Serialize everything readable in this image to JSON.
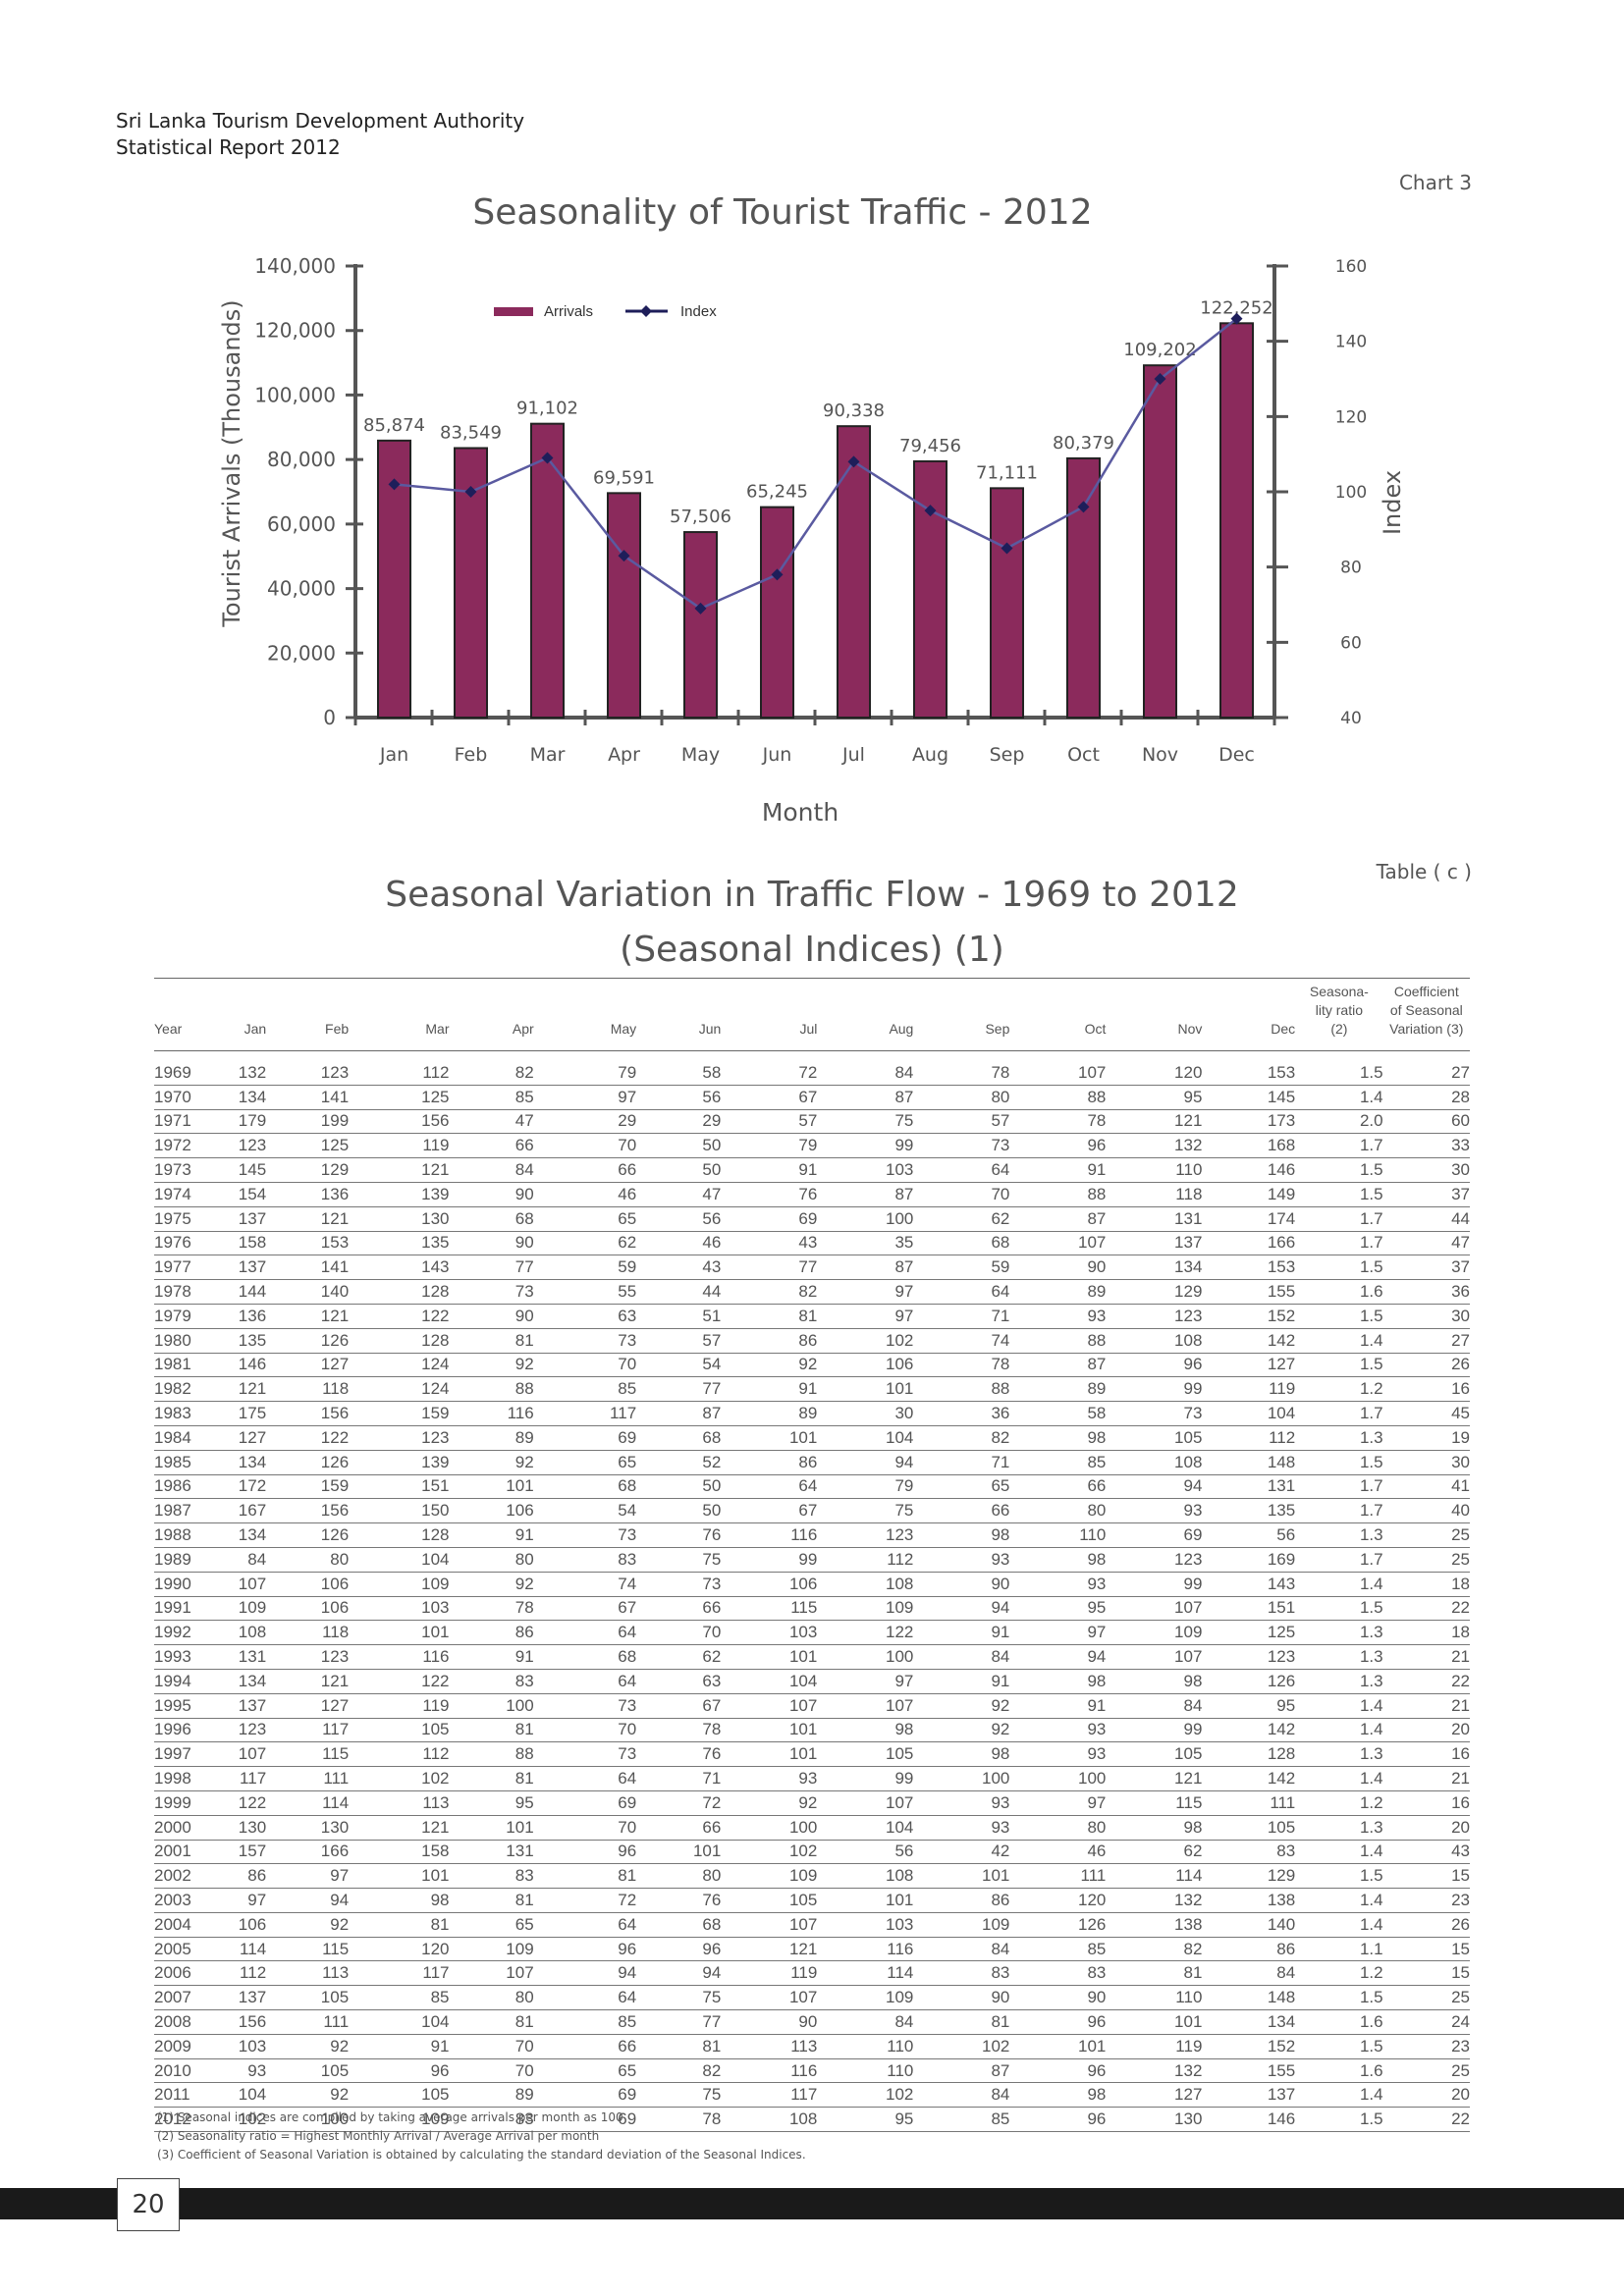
{
  "header": {
    "org_line1": "Sri Lanka Tourism Development Authority",
    "org_line2": "Statistical Report 2012"
  },
  "chart_label": "Chart 3",
  "table_label": "Table ( c )",
  "table_title_line1": "Seasonal Variation in Traffic Flow - 1969 to 2012",
  "table_title_line2": "(Seasonal Indices) (1)",
  "page_number": "20",
  "colors": {
    "bar": "#8b2a5c",
    "line": "#5a5aa0",
    "marker": "#1e1e5a",
    "axis": "#555555"
  },
  "chart_data": {
    "type": "bar",
    "title": "Seasonality of Tourist Traffic - 2012",
    "xlabel": "Month",
    "ylabel": "Tourist Arrivals (Thousands)",
    "y2label": "Index",
    "categories": [
      "Jan",
      "Feb",
      "Mar",
      "Apr",
      "May",
      "Jun",
      "Jul",
      "Aug",
      "Sep",
      "Oct",
      "Nov",
      "Dec"
    ],
    "ylim": [
      0,
      140000
    ],
    "yticks": [
      0,
      20000,
      40000,
      60000,
      80000,
      100000,
      120000,
      140000
    ],
    "ytick_labels": [
      "0",
      "20,000",
      "40,000",
      "60,000",
      "80,000",
      "100,000",
      "120,000",
      "140,000"
    ],
    "y2lim": [
      40,
      160
    ],
    "y2ticks": [
      40,
      60,
      80,
      100,
      120,
      140,
      160
    ],
    "legend_position": "top-left",
    "series": [
      {
        "name": "Arrivals",
        "type": "bar",
        "axis": "left",
        "values": [
          85874,
          83549,
          91102,
          69591,
          57506,
          65245,
          90338,
          79456,
          71111,
          80379,
          109202,
          122252
        ],
        "labels": [
          "85,874",
          "83,549",
          "91,102",
          "69,591",
          "57,506",
          "65,245",
          "90,338",
          "79,456",
          "71,111",
          "80,379",
          "109,202",
          "122,252"
        ]
      },
      {
        "name": "Index",
        "type": "line",
        "axis": "right",
        "values": [
          102,
          100,
          109,
          83,
          69,
          78,
          108,
          95,
          85,
          96,
          130,
          146
        ]
      }
    ]
  },
  "table": {
    "headers": [
      "Year",
      "Jan",
      "Feb",
      "Mar",
      "Apr",
      "May",
      "Jun",
      "Jul",
      "Aug",
      "Sep",
      "Oct",
      "Nov",
      "Dec",
      "Seasona-\nlity ratio\n(2)",
      "Coefficient\nof Seasonal\nVariation (3)"
    ],
    "rows": [
      [
        "1969",
        "132",
        "123",
        "112",
        "82",
        "79",
        "58",
        "72",
        "84",
        "78",
        "107",
        "120",
        "153",
        "1.5",
        "27"
      ],
      [
        "1970",
        "134",
        "141",
        "125",
        "85",
        "97",
        "56",
        "67",
        "87",
        "80",
        "88",
        "95",
        "145",
        "1.4",
        "28"
      ],
      [
        "1971",
        "179",
        "199",
        "156",
        "47",
        "29",
        "29",
        "57",
        "75",
        "57",
        "78",
        "121",
        "173",
        "2.0",
        "60"
      ],
      [
        "1972",
        "123",
        "125",
        "119",
        "66",
        "70",
        "50",
        "79",
        "99",
        "73",
        "96",
        "132",
        "168",
        "1.7",
        "33"
      ],
      [
        "1973",
        "145",
        "129",
        "121",
        "84",
        "66",
        "50",
        "91",
        "103",
        "64",
        "91",
        "110",
        "146",
        "1.5",
        "30"
      ],
      [
        "1974",
        "154",
        "136",
        "139",
        "90",
        "46",
        "47",
        "76",
        "87",
        "70",
        "88",
        "118",
        "149",
        "1.5",
        "37"
      ],
      [
        "1975",
        "137",
        "121",
        "130",
        "68",
        "65",
        "56",
        "69",
        "100",
        "62",
        "87",
        "131",
        "174",
        "1.7",
        "44"
      ],
      [
        "1976",
        "158",
        "153",
        "135",
        "90",
        "62",
        "46",
        "43",
        "35",
        "68",
        "107",
        "137",
        "166",
        "1.7",
        "47"
      ],
      [
        "1977",
        "137",
        "141",
        "143",
        "77",
        "59",
        "43",
        "77",
        "87",
        "59",
        "90",
        "134",
        "153",
        "1.5",
        "37"
      ],
      [
        "1978",
        "144",
        "140",
        "128",
        "73",
        "55",
        "44",
        "82",
        "97",
        "64",
        "89",
        "129",
        "155",
        "1.6",
        "36"
      ],
      [
        "1979",
        "136",
        "121",
        "122",
        "90",
        "63",
        "51",
        "81",
        "97",
        "71",
        "93",
        "123",
        "152",
        "1.5",
        "30"
      ],
      [
        "1980",
        "135",
        "126",
        "128",
        "81",
        "73",
        "57",
        "86",
        "102",
        "74",
        "88",
        "108",
        "142",
        "1.4",
        "27"
      ],
      [
        "1981",
        "146",
        "127",
        "124",
        "92",
        "70",
        "54",
        "92",
        "106",
        "78",
        "87",
        "96",
        "127",
        "1.5",
        "26"
      ],
      [
        "1982",
        "121",
        "118",
        "124",
        "88",
        "85",
        "77",
        "91",
        "101",
        "88",
        "89",
        "99",
        "119",
        "1.2",
        "16"
      ],
      [
        "1983",
        "175",
        "156",
        "159",
        "116",
        "117",
        "87",
        "89",
        "30",
        "36",
        "58",
        "73",
        "104",
        "1.7",
        "45"
      ],
      [
        "1984",
        "127",
        "122",
        "123",
        "89",
        "69",
        "68",
        "101",
        "104",
        "82",
        "98",
        "105",
        "112",
        "1.3",
        "19"
      ],
      [
        "1985",
        "134",
        "126",
        "139",
        "92",
        "65",
        "52",
        "86",
        "94",
        "71",
        "85",
        "108",
        "148",
        "1.5",
        "30"
      ],
      [
        "1986",
        "172",
        "159",
        "151",
        "101",
        "68",
        "50",
        "64",
        "79",
        "65",
        "66",
        "94",
        "131",
        "1.7",
        "41"
      ],
      [
        "1987",
        "167",
        "156",
        "150",
        "106",
        "54",
        "50",
        "67",
        "75",
        "66",
        "80",
        "93",
        "135",
        "1.7",
        "40"
      ],
      [
        "1988",
        "134",
        "126",
        "128",
        "91",
        "73",
        "76",
        "116",
        "123",
        "98",
        "110",
        "69",
        "56",
        "1.3",
        "25"
      ],
      [
        "1989",
        "84",
        "80",
        "104",
        "80",
        "83",
        "75",
        "99",
        "112",
        "93",
        "98",
        "123",
        "169",
        "1.7",
        "25"
      ],
      [
        "1990",
        "107",
        "106",
        "109",
        "92",
        "74",
        "73",
        "106",
        "108",
        "90",
        "93",
        "99",
        "143",
        "1.4",
        "18"
      ],
      [
        "1991",
        "109",
        "106",
        "103",
        "78",
        "67",
        "66",
        "115",
        "109",
        "94",
        "95",
        "107",
        "151",
        "1.5",
        "22"
      ],
      [
        "1992",
        "108",
        "118",
        "101",
        "86",
        "64",
        "70",
        "103",
        "122",
        "91",
        "97",
        "109",
        "125",
        "1.3",
        "18"
      ],
      [
        "1993",
        "131",
        "123",
        "116",
        "91",
        "68",
        "62",
        "101",
        "100",
        "84",
        "94",
        "107",
        "123",
        "1.3",
        "21"
      ],
      [
        "1994",
        "134",
        "121",
        "122",
        "83",
        "64",
        "63",
        "104",
        "97",
        "91",
        "98",
        "98",
        "126",
        "1.3",
        "22"
      ],
      [
        "1995",
        "137",
        "127",
        "119",
        "100",
        "73",
        "67",
        "107",
        "107",
        "92",
        "91",
        "84",
        "95",
        "1.4",
        "21"
      ],
      [
        "1996",
        "123",
        "117",
        "105",
        "81",
        "70",
        "78",
        "101",
        "98",
        "92",
        "93",
        "99",
        "142",
        "1.4",
        "20"
      ],
      [
        "1997",
        "107",
        "115",
        "112",
        "88",
        "73",
        "76",
        "101",
        "105",
        "98",
        "93",
        "105",
        "128",
        "1.3",
        "16"
      ],
      [
        "1998",
        "117",
        "111",
        "102",
        "81",
        "64",
        "71",
        "93",
        "99",
        "100",
        "100",
        "121",
        "142",
        "1.4",
        "21"
      ],
      [
        "1999",
        "122",
        "114",
        "113",
        "95",
        "69",
        "72",
        "92",
        "107",
        "93",
        "97",
        "115",
        "111",
        "1.2",
        "16"
      ],
      [
        "2000",
        "130",
        "130",
        "121",
        "101",
        "70",
        "66",
        "100",
        "104",
        "93",
        "80",
        "98",
        "105",
        "1.3",
        "20"
      ],
      [
        "2001",
        "157",
        "166",
        "158",
        "131",
        "96",
        "101",
        "102",
        "56",
        "42",
        "46",
        "62",
        "83",
        "1.4",
        "43"
      ],
      [
        "2002",
        "86",
        "97",
        "101",
        "83",
        "81",
        "80",
        "109",
        "108",
        "101",
        "111",
        "114",
        "129",
        "1.5",
        "15"
      ],
      [
        "2003",
        "97",
        "94",
        "98",
        "81",
        "72",
        "76",
        "105",
        "101",
        "86",
        "120",
        "132",
        "138",
        "1.4",
        "23"
      ],
      [
        "2004",
        "106",
        "92",
        "81",
        "65",
        "64",
        "68",
        "107",
        "103",
        "109",
        "126",
        "138",
        "140",
        "1.4",
        "26"
      ],
      [
        "2005",
        "114",
        "115",
        "120",
        "109",
        "96",
        "96",
        "121",
        "116",
        "84",
        "85",
        "82",
        "86",
        "1.1",
        "15"
      ],
      [
        "2006",
        "112",
        "113",
        "117",
        "107",
        "94",
        "94",
        "119",
        "114",
        "83",
        "83",
        "81",
        "84",
        "1.2",
        "15"
      ],
      [
        "2007",
        "137",
        "105",
        "85",
        "80",
        "64",
        "75",
        "107",
        "109",
        "90",
        "90",
        "110",
        "148",
        "1.5",
        "25"
      ],
      [
        "2008",
        "156",
        "111",
        "104",
        "81",
        "85",
        "77",
        "90",
        "84",
        "81",
        "96",
        "101",
        "134",
        "1.6",
        "24"
      ],
      [
        "2009",
        "103",
        "92",
        "91",
        "70",
        "66",
        "81",
        "113",
        "110",
        "102",
        "101",
        "119",
        "152",
        "1.5",
        "23"
      ],
      [
        "2010",
        "93",
        "105",
        "96",
        "70",
        "65",
        "82",
        "116",
        "110",
        "87",
        "96",
        "132",
        "155",
        "1.6",
        "25"
      ],
      [
        "2011",
        "104",
        "92",
        "105",
        "89",
        "69",
        "75",
        "117",
        "102",
        "84",
        "98",
        "127",
        "137",
        "1.4",
        "20"
      ],
      [
        "2012",
        "102",
        "100",
        "109",
        "83",
        "69",
        "78",
        "108",
        "95",
        "85",
        "96",
        "130",
        "146",
        "1.5",
        "22"
      ]
    ]
  },
  "footnotes": [
    "(1)    Seasonal indices are compiled by taking average arrivals per month as 100",
    "(2)    Seasonality ratio = Highest Monthly Arrival / Average Arrival per month",
    "(3) Coefficient of Seasonal Variation is obtained by calculating the standard deviation of the Seasonal Indices."
  ]
}
